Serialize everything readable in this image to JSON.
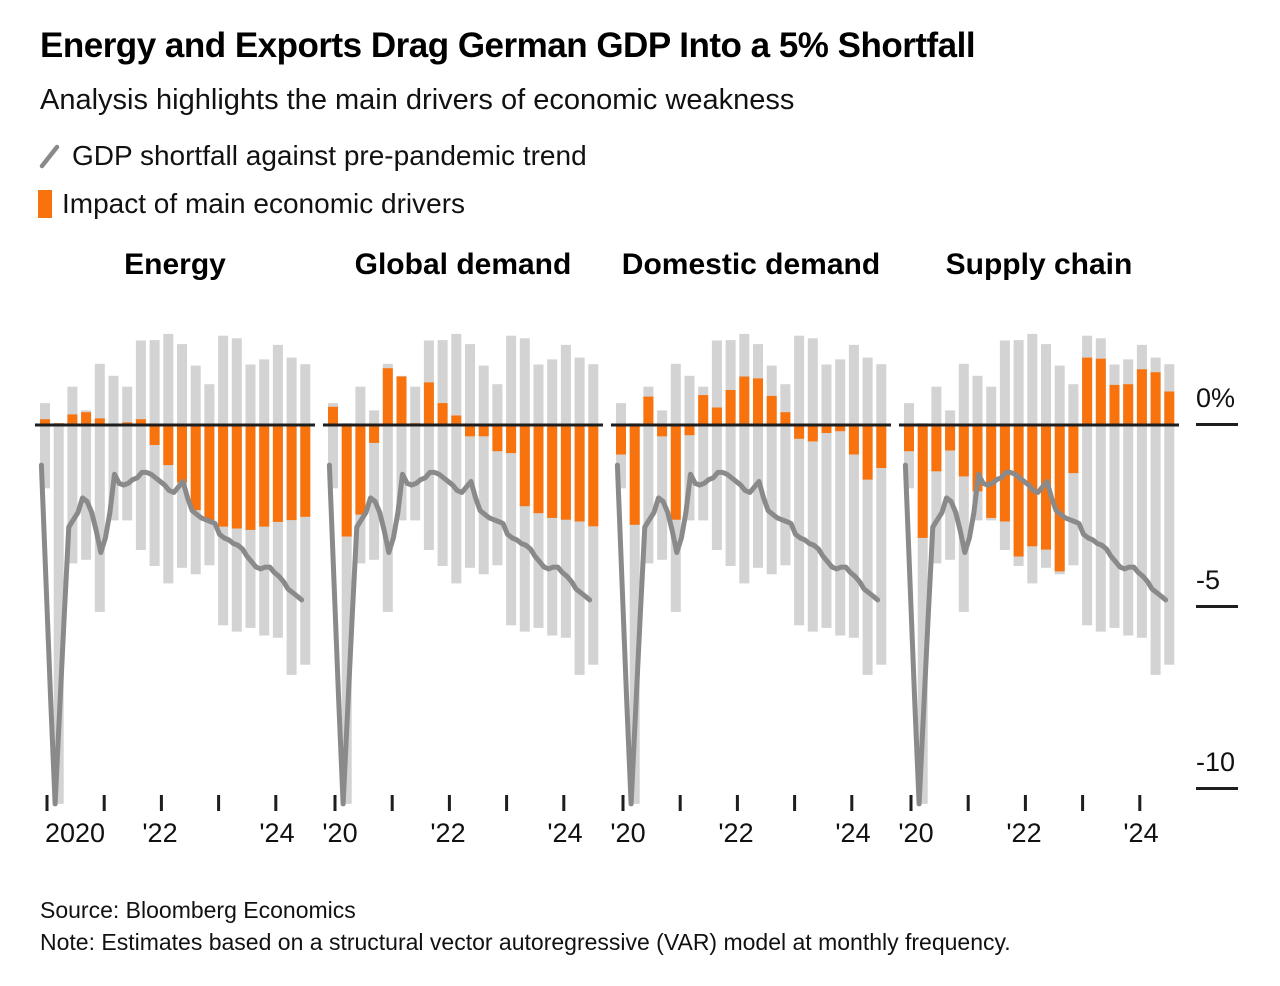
{
  "header": {
    "title": "Energy and Exports Drag German GDP Into a 5% Shortfall",
    "subtitle": "Analysis highlights the main drivers of economic weakness"
  },
  "legend": {
    "line_label": "GDP shortfall against pre-pandemic trend",
    "bar_label": "Impact of main economic drivers"
  },
  "colors": {
    "orange": "#F8720D",
    "gray_bar": "#D3D3D3",
    "line": "#8A8A8A",
    "zero_line": "#1E1E1E",
    "text": "#000000"
  },
  "y_axis": {
    "ticks": [
      {
        "label": "0%",
        "value": 0
      },
      {
        "label": "-5",
        "value": -5
      },
      {
        "label": "-10",
        "value": -10
      }
    ]
  },
  "chart_data": {
    "type": "bar",
    "subtype": "small-multiples bar + line, monthly VAR decomposition",
    "unit": "% deviation from pre-pandemic GDP trend",
    "ylim": [
      -11,
      3
    ],
    "grid": false,
    "legend_position": "top-left",
    "quarters": [
      "2020Q1",
      "2020Q2",
      "2020Q3",
      "2020Q4",
      "2021Q1",
      "2021Q2",
      "2021Q3",
      "2021Q4",
      "2022Q1",
      "2022Q2",
      "2022Q3",
      "2022Q4",
      "2023Q1",
      "2023Q2",
      "2023Q3",
      "2023Q4",
      "2024Q1",
      "2024Q2",
      "2024Q3",
      "2024Q4"
    ],
    "tick_years": [
      "2020",
      "2021",
      "2022",
      "2023",
      "2024"
    ],
    "shared_gray_bars": {
      "description": "total span of all drivers' contributions (same in every panel)",
      "top": [
        0.6,
        0.05,
        1.05,
        0.4,
        1.68,
        1.35,
        1.05,
        2.32,
        2.33,
        2.5,
        2.22,
        1.63,
        1.12,
        2.45,
        2.38,
        1.66,
        1.8,
        2.2,
        1.85,
        1.67
      ],
      "bottom": [
        -1.74,
        -10.4,
        -3.8,
        -3.7,
        -5.13,
        -2.62,
        -2.62,
        -3.43,
        -3.87,
        -4.35,
        -3.92,
        -4.1,
        -3.85,
        -5.5,
        -5.67,
        -5.57,
        -5.78,
        -5.84,
        -6.86,
        -6.58
      ]
    },
    "panels": [
      {
        "title": "Energy",
        "x_labels": [
          "2020",
          "'22",
          "'24"
        ],
        "impact": [
          0.16,
          0.05,
          0.29,
          0.35,
          0.18,
          0.02,
          0.07,
          0.16,
          -0.55,
          -1.1,
          -1.58,
          -2.34,
          -2.61,
          -2.79,
          -2.84,
          -2.88,
          -2.79,
          -2.66,
          -2.61,
          -2.52
        ]
      },
      {
        "title": "Global demand",
        "x_labels": [
          "'20",
          "'22",
          "'24"
        ],
        "impact": [
          0.5,
          -3.06,
          -2.46,
          -0.49,
          1.56,
          1.33,
          0.05,
          1.17,
          0.6,
          0.26,
          -0.31,
          -0.31,
          -0.72,
          -0.77,
          -2.23,
          -2.42,
          -2.55,
          -2.6,
          -2.65,
          -2.78
        ]
      },
      {
        "title": "Domestic demand",
        "x_labels": [
          "'20",
          "'22",
          "'24"
        ],
        "impact": [
          -0.81,
          -2.74,
          0.78,
          -0.31,
          -2.6,
          -0.28,
          0.82,
          0.48,
          0.96,
          1.33,
          1.28,
          0.8,
          0.35,
          -0.38,
          -0.45,
          -0.22,
          -0.17,
          -0.81,
          -1.5,
          -1.18
        ]
      },
      {
        "title": "Supply chain",
        "x_labels": [
          "'20",
          "'22",
          "'24"
        ],
        "impact": [
          -0.72,
          -3.1,
          -1.27,
          -0.7,
          -1.41,
          -1.82,
          -2.55,
          -2.65,
          -3.61,
          -3.33,
          -3.42,
          -4.02,
          -1.32,
          1.85,
          1.82,
          1.1,
          1.12,
          1.53,
          1.45,
          0.92
        ]
      }
    ],
    "line_monthly": {
      "name": "GDP shortfall against pre-pandemic trend",
      "start": "2020-01",
      "values": [
        -1.1,
        -4.3,
        -7.5,
        -10.4,
        -7.8,
        -5.2,
        -2.8,
        -2.6,
        -2.4,
        -2.0,
        -2.1,
        -2.4,
        -2.9,
        -3.5,
        -3.1,
        -2.4,
        -1.35,
        -1.6,
        -1.65,
        -1.6,
        -1.5,
        -1.45,
        -1.3,
        -1.3,
        -1.35,
        -1.45,
        -1.55,
        -1.65,
        -1.8,
        -1.85,
        -1.7,
        -1.55,
        -2.0,
        -2.35,
        -2.45,
        -2.55,
        -2.6,
        -2.65,
        -2.7,
        -3.0,
        -3.1,
        -3.15,
        -3.25,
        -3.3,
        -3.4,
        -3.6,
        -3.75,
        -3.9,
        -3.95,
        -3.9,
        -3.9,
        -4.05,
        -4.15,
        -4.3,
        -4.5,
        -4.6,
        -4.7,
        -4.8
      ]
    }
  },
  "footer": {
    "source": "Source: Bloomberg Economics",
    "note": "Note: Estimates based on a structural vector autoregressive (VAR) model at monthly frequency."
  }
}
